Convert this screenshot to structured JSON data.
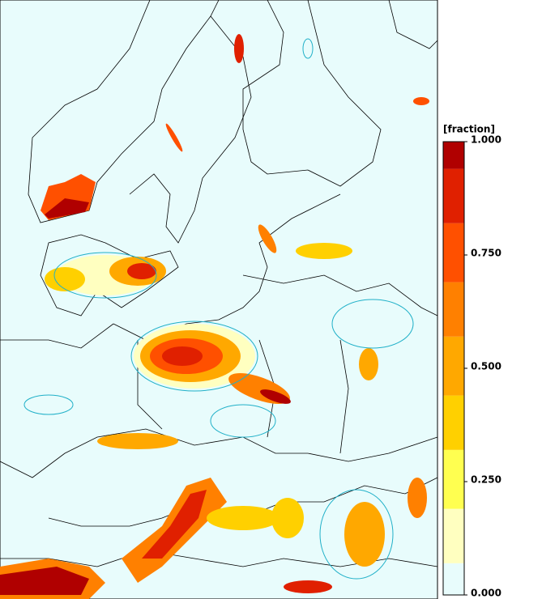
{
  "colorbar": {
    "title": "[fraction]",
    "levels": [
      0,
      0.07,
      0.19,
      0.32,
      0.44,
      0.57,
      0.69,
      0.82,
      0.94,
      1
    ],
    "colors": [
      "#e8fcfc",
      "#ffffc0",
      "#ffff50",
      "#ffd000",
      "#ffa800",
      "#ff8000",
      "#ff5000",
      "#e02000",
      "#b00000"
    ],
    "lim": [
      0,
      1
    ],
    "ticks": [
      {
        "value": 1,
        "label": "1.000"
      },
      {
        "value": 0.75,
        "label": "0.750"
      },
      {
        "value": 0.5,
        "label": "0.500"
      },
      {
        "value": 0.25,
        "label": "0.250"
      },
      {
        "value": 0,
        "label": "0.000"
      }
    ]
  }
}
